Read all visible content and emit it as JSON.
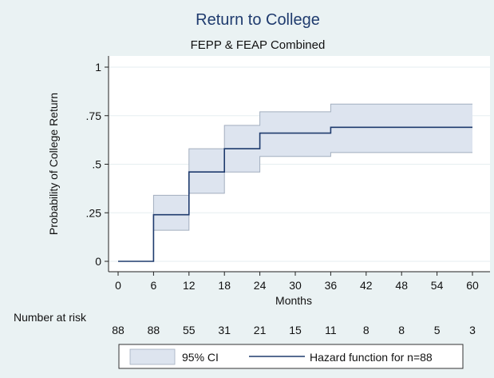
{
  "chart_data": {
    "type": "line",
    "title": "Return to College",
    "subtitle": "FEPP & FEAP Combined",
    "xlabel": "Months",
    "ylabel": "Probability of College Return",
    "xlim": [
      0,
      60
    ],
    "ylim": [
      0,
      1
    ],
    "x_ticks": [
      0,
      6,
      12,
      18,
      24,
      30,
      36,
      42,
      48,
      54,
      60
    ],
    "y_ticks": [
      {
        "value": 0,
        "label": "0"
      },
      {
        "value": 0.25,
        "label": ".25"
      },
      {
        "value": 0.5,
        "label": ".5"
      },
      {
        "value": 0.75,
        "label": ".75"
      },
      {
        "value": 1,
        "label": "1"
      }
    ],
    "grid": true,
    "step_times": [
      0,
      6,
      12,
      18,
      24,
      36,
      60
    ],
    "series": [
      {
        "name": "Hazard function for n=88",
        "values": [
          0,
          0.24,
          0.46,
          0.58,
          0.66,
          0.69,
          0.69
        ]
      }
    ],
    "ci_band": {
      "name": "95% CI",
      "lower": [
        0,
        0.16,
        0.35,
        0.46,
        0.54,
        0.56,
        0.56
      ],
      "upper": [
        0,
        0.34,
        0.58,
        0.7,
        0.77,
        0.81,
        0.81
      ]
    },
    "risk_table": {
      "label": "Number at risk",
      "x": [
        0,
        6,
        12,
        18,
        24,
        30,
        36,
        42,
        48,
        54,
        60
      ],
      "values": [
        88,
        88,
        55,
        31,
        21,
        15,
        11,
        8,
        8,
        5,
        3
      ]
    },
    "legend": {
      "position": "bottom",
      "items": [
        {
          "label": "95% CI",
          "kind": "band"
        },
        {
          "label": "Hazard function for n=88",
          "kind": "line"
        }
      ]
    },
    "colors": {
      "page_background": "#eaf2f3",
      "plot_background": "#ffffff",
      "grid": "#e6eef0",
      "line": "#1f3b6e",
      "band_fill": "#dde4ef",
      "band_stroke": "#a2aebf",
      "title": "#1f3b6e"
    }
  }
}
